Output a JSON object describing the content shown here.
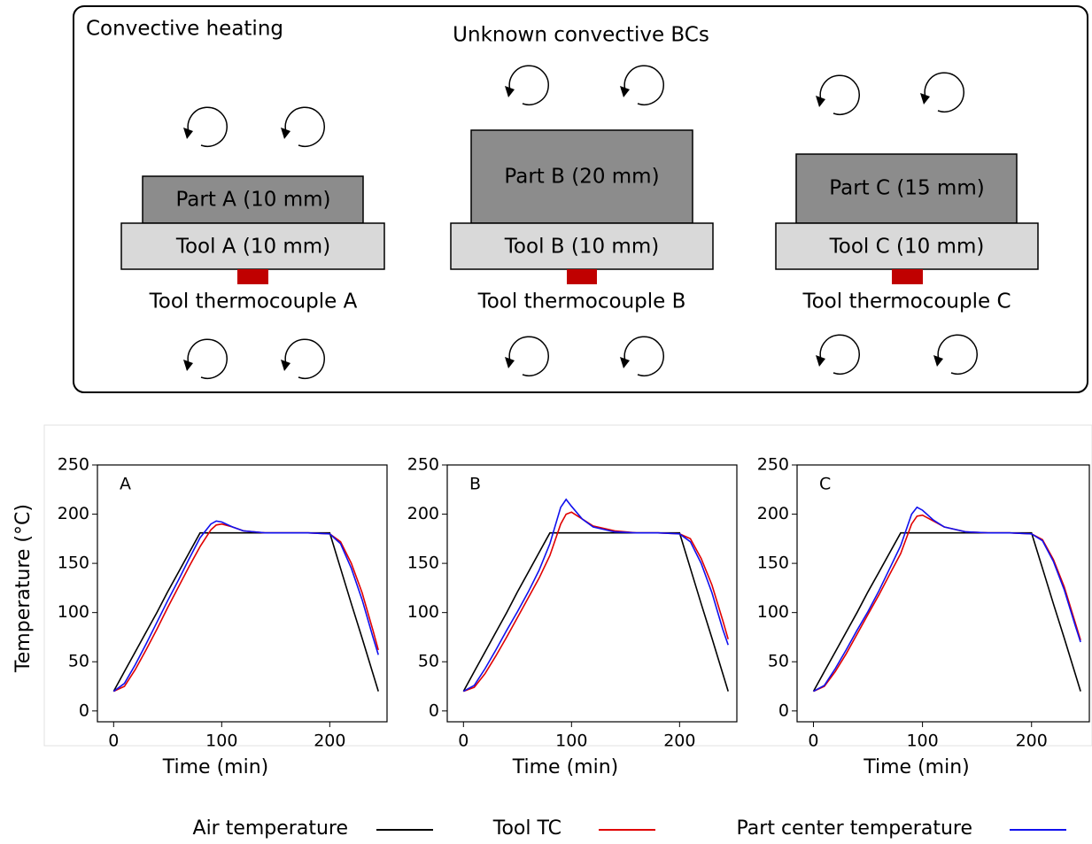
{
  "diagram": {
    "title": "Convective heating",
    "subtitle": "Unknown convective BCs",
    "setups": [
      {
        "part": "Part A (10 mm)",
        "tool": "Tool A (10 mm)",
        "thermocouple": "Tool thermocouple A"
      },
      {
        "part": "Part B (20 mm)",
        "tool": "Tool B (10 mm)",
        "thermocouple": "Tool thermocouple B"
      },
      {
        "part": "Part C (15 mm)",
        "tool": "Tool C (10 mm)",
        "thermocouple": "Tool thermocouple C"
      }
    ]
  },
  "chart_data": [
    {
      "type": "line",
      "title": "A",
      "xlabel": "Time (min)",
      "ylabel": "Temperature (°C)",
      "x": [
        0,
        10,
        20,
        30,
        40,
        50,
        60,
        70,
        80,
        90,
        95,
        100,
        110,
        120,
        140,
        160,
        180,
        200,
        210,
        220,
        230,
        240,
        245
      ],
      "xlim": [
        -15,
        253
      ],
      "ylim": [
        -11,
        250
      ],
      "xticks": [
        0,
        100,
        200
      ],
      "yticks": [
        0,
        50,
        100,
        150,
        200,
        250
      ],
      "series": [
        {
          "name": "Air temperature",
          "color": "#000000",
          "values": [
            20,
            40,
            60,
            80,
            100,
            121,
            141,
            161,
            181,
            181,
            181,
            181,
            181,
            181,
            181,
            181,
            181,
            181,
            145,
            109,
            74,
            38,
            20
          ]
        },
        {
          "name": "Tool TC",
          "color": "#e00000",
          "values": [
            20,
            25,
            42,
            62,
            83,
            105,
            126,
            147,
            167,
            184,
            189,
            190,
            187,
            183,
            181,
            181,
            181,
            180,
            172,
            150,
            120,
            82,
            62
          ]
        },
        {
          "name": "Part center temperature",
          "color": "#1010ee",
          "values": [
            20,
            28,
            47,
            68,
            90,
            112,
            133,
            155,
            176,
            190,
            193,
            192,
            187,
            183,
            181,
            181,
            181,
            180,
            170,
            145,
            113,
            75,
            57
          ]
        }
      ]
    },
    {
      "type": "line",
      "title": "B",
      "xlabel": "Time (min)",
      "x": [
        0,
        10,
        20,
        30,
        40,
        50,
        60,
        70,
        80,
        90,
        95,
        100,
        110,
        120,
        140,
        160,
        180,
        200,
        210,
        220,
        230,
        240,
        245
      ],
      "xlim": [
        -15,
        253
      ],
      "ylim": [
        -11,
        250
      ],
      "xticks": [
        0,
        100,
        200
      ],
      "yticks": [
        0,
        50,
        100,
        150,
        200,
        250
      ],
      "series": [
        {
          "color": "#000000",
          "values": [
            20,
            40,
            60,
            80,
            100,
            121,
            141,
            161,
            181,
            181,
            181,
            181,
            181,
            181,
            181,
            181,
            181,
            181,
            145,
            109,
            74,
            38,
            20
          ]
        },
        {
          "color": "#e00000",
          "values": [
            20,
            24,
            38,
            56,
            75,
            95,
            115,
            135,
            158,
            190,
            200,
            202,
            195,
            188,
            183,
            181,
            181,
            180,
            175,
            155,
            128,
            92,
            73
          ]
        },
        {
          "color": "#1010ee",
          "values": [
            20,
            26,
            43,
            62,
            82,
            101,
            121,
            143,
            170,
            207,
            215,
            208,
            195,
            187,
            182,
            181,
            181,
            180,
            172,
            150,
            120,
            83,
            67
          ]
        }
      ]
    },
    {
      "type": "line",
      "title": "C",
      "xlabel": "Time (min)",
      "x": [
        0,
        10,
        20,
        30,
        40,
        50,
        60,
        70,
        80,
        90,
        95,
        100,
        110,
        120,
        140,
        160,
        180,
        200,
        210,
        220,
        230,
        240,
        245
      ],
      "xlim": [
        -15,
        253
      ],
      "ylim": [
        -11,
        250
      ],
      "xticks": [
        0,
        100,
        200
      ],
      "yticks": [
        0,
        50,
        100,
        150,
        200,
        250
      ],
      "series": [
        {
          "color": "#000000",
          "values": [
            20,
            40,
            60,
            80,
            100,
            121,
            141,
            161,
            181,
            181,
            181,
            181,
            181,
            181,
            181,
            181,
            181,
            181,
            145,
            109,
            74,
            38,
            20
          ]
        },
        {
          "color": "#e00000",
          "values": [
            20,
            25,
            40,
            58,
            78,
            98,
            118,
            139,
            160,
            190,
            198,
            199,
            193,
            187,
            182,
            181,
            181,
            180,
            174,
            154,
            126,
            90,
            72
          ]
        },
        {
          "color": "#1010ee",
          "values": [
            20,
            26,
            43,
            62,
            82,
            101,
            122,
            145,
            168,
            200,
            207,
            204,
            194,
            187,
            182,
            181,
            181,
            180,
            173,
            152,
            123,
            87,
            70
          ]
        }
      ]
    }
  ]
}
